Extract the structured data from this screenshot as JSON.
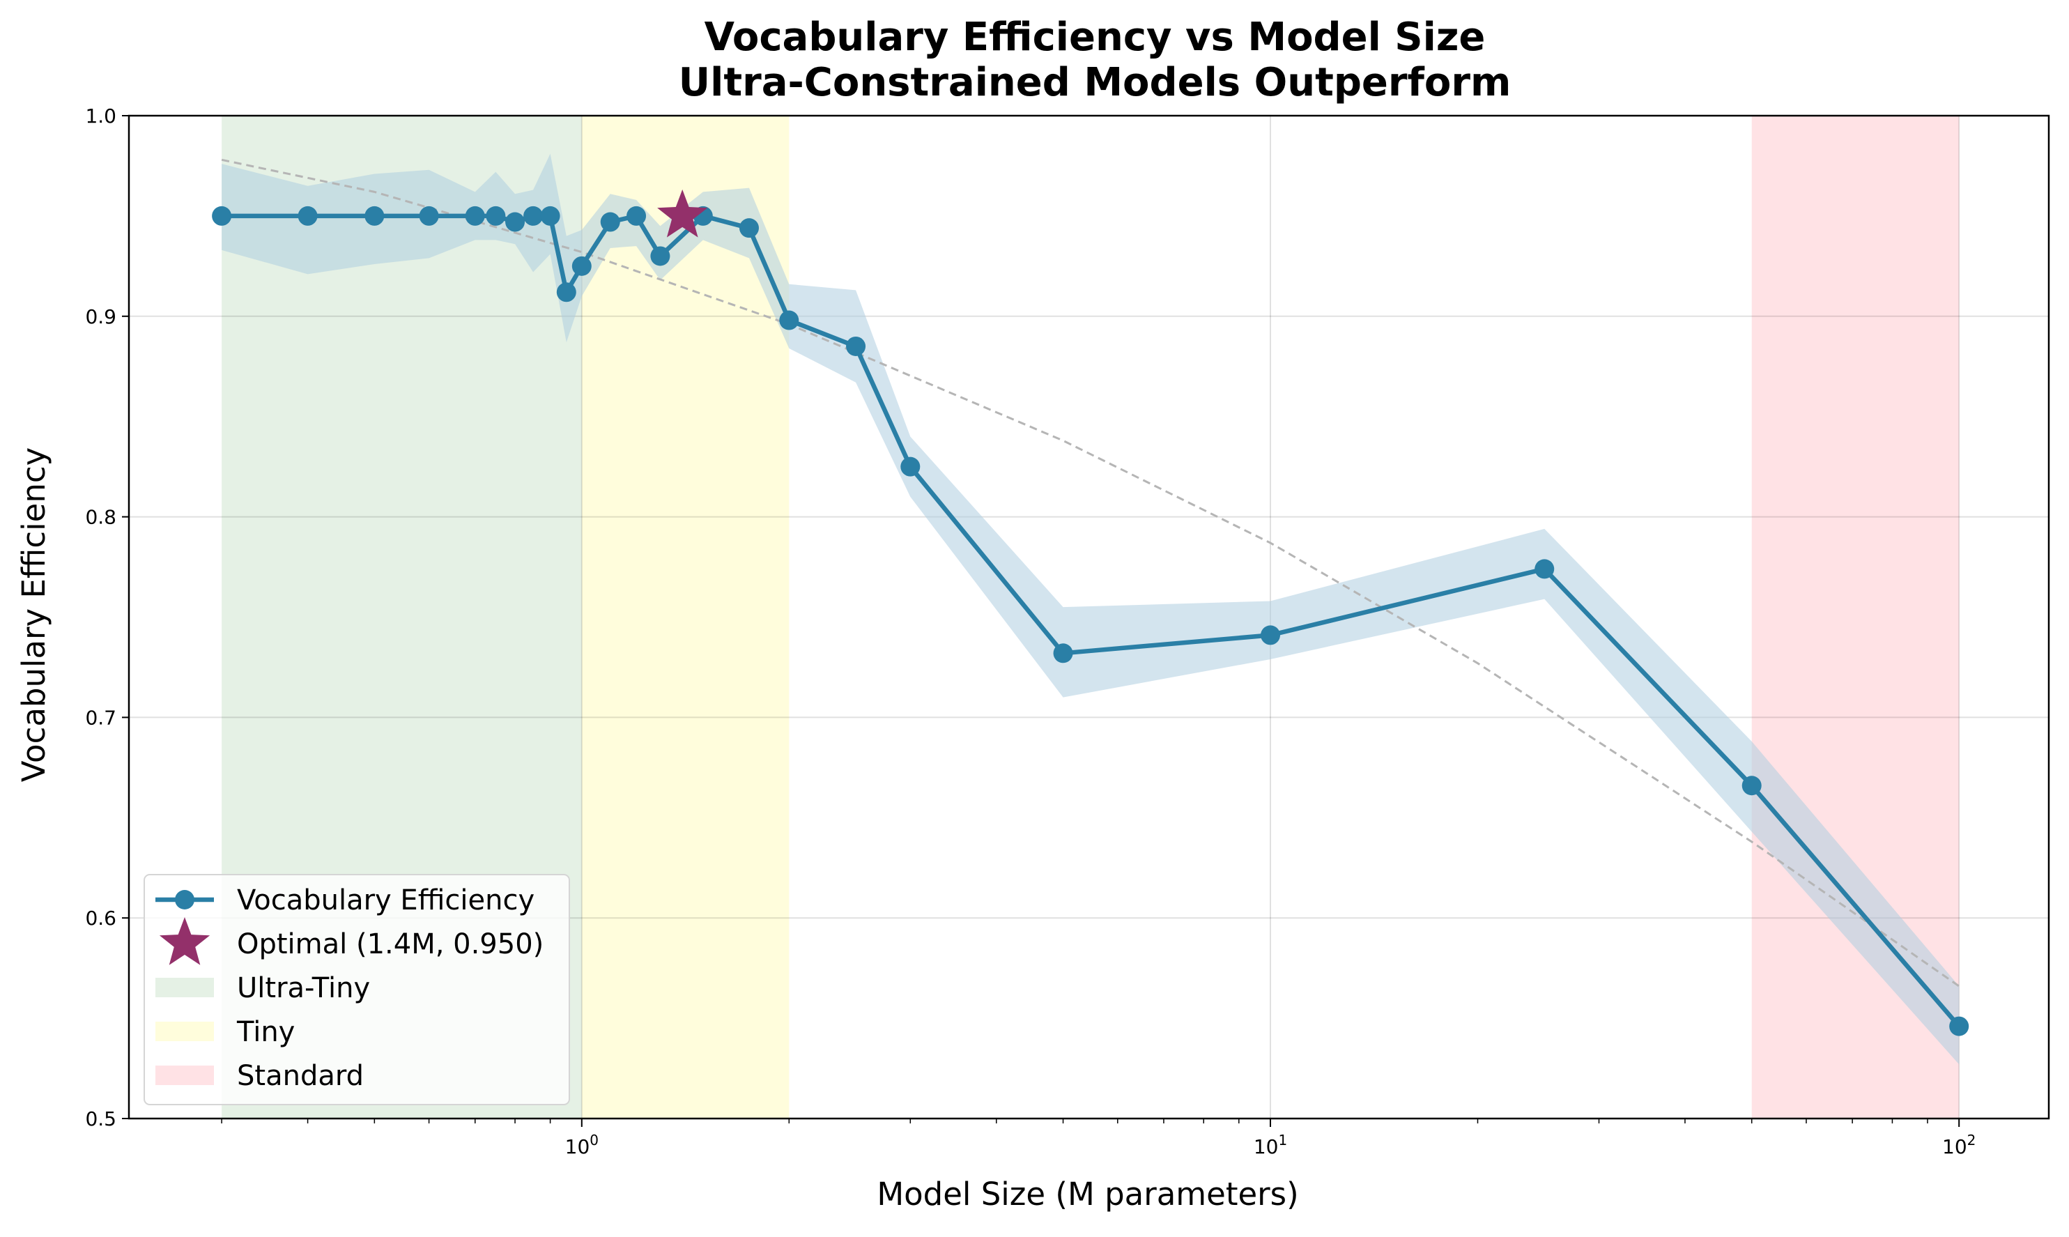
{
  "chart_data": {
    "type": "line",
    "title": [
      "Vocabulary Efficiency vs Model Size",
      "Ultra-Constrained Models Outperform"
    ],
    "xlabel": "Model Size (M parameters)",
    "ylabel": "Vocabulary Efficiency",
    "x_scale": "log",
    "xlim": [
      0.22,
      135
    ],
    "ylim": [
      0.5,
      1.0
    ],
    "grid": true,
    "y_ticks": [
      0.5,
      0.6,
      0.7,
      0.8,
      0.9,
      1.0
    ],
    "y_tick_labels": [
      "0.5",
      "0.6",
      "0.7",
      "0.8",
      "0.9",
      "1.0"
    ],
    "x_ticks": [
      1,
      10,
      100
    ],
    "x_tick_labels": [
      {
        "base": "10",
        "exp": "0"
      },
      {
        "base": "10",
        "exp": "1"
      },
      {
        "base": "10",
        "exp": "2"
      }
    ],
    "series": [
      {
        "name": "Vocabulary Efficiency",
        "color": "#2a7fa6",
        "band_color": "#aecde0",
        "x": [
          0.3,
          0.4,
          0.5,
          0.6,
          0.7,
          0.75,
          0.8,
          0.85,
          0.9,
          0.95,
          1.0,
          1.1,
          1.2,
          1.3,
          1.5,
          1.75,
          2.0,
          2.5,
          3.0,
          5.0,
          10.0,
          25.0,
          50.0,
          100.0
        ],
        "y": [
          0.95,
          0.95,
          0.95,
          0.95,
          0.95,
          0.95,
          0.947,
          0.95,
          0.95,
          0.912,
          0.925,
          0.947,
          0.95,
          0.93,
          0.95,
          0.944,
          0.898,
          0.885,
          0.825,
          0.732,
          0.741,
          0.774,
          0.666,
          0.546
        ],
        "lower": [
          0.933,
          0.921,
          0.926,
          0.929,
          0.938,
          0.938,
          0.936,
          0.922,
          0.931,
          0.887,
          0.91,
          0.934,
          0.935,
          0.918,
          0.938,
          0.929,
          0.884,
          0.867,
          0.81,
          0.71,
          0.729,
          0.759,
          0.643,
          0.527
        ],
        "upper": [
          0.976,
          0.965,
          0.971,
          0.973,
          0.962,
          0.972,
          0.961,
          0.963,
          0.981,
          0.94,
          0.943,
          0.961,
          0.958,
          0.945,
          0.962,
          0.964,
          0.916,
          0.913,
          0.84,
          0.755,
          0.758,
          0.794,
          0.688,
          0.566
        ]
      }
    ],
    "trend": {
      "color": "#b5b5b5",
      "style": "dashed",
      "x": [
        0.3,
        0.5,
        1.0,
        2.0,
        5.0,
        10.0,
        20.0,
        50.0,
        100.0
      ],
      "y": [
        0.978,
        0.962,
        0.932,
        0.896,
        0.838,
        0.787,
        0.727,
        0.638,
        0.566
      ]
    },
    "optimal": {
      "label": "Optimal (1.4M, 0.950)",
      "x": 1.4,
      "y": 0.95,
      "color": "#93306a"
    },
    "regions": [
      {
        "name": "Ultra-Tiny",
        "x0": 0.3,
        "x1": 1.0,
        "color": "#d4e8d4",
        "opacity": 0.6
      },
      {
        "name": "Tiny",
        "x0": 1.0,
        "x1": 2.0,
        "color": "#fffcc0",
        "opacity": 0.55
      },
      {
        "name": "Standard",
        "x0": 50.0,
        "x1": 100.0,
        "color": "#ffc5cc",
        "opacity": 0.5
      }
    ],
    "legend": {
      "placement": "lower-left",
      "entries": [
        "Vocabulary Efficiency",
        "Optimal (1.4M, 0.950)",
        "Ultra-Tiny",
        "Tiny",
        "Standard"
      ]
    }
  }
}
